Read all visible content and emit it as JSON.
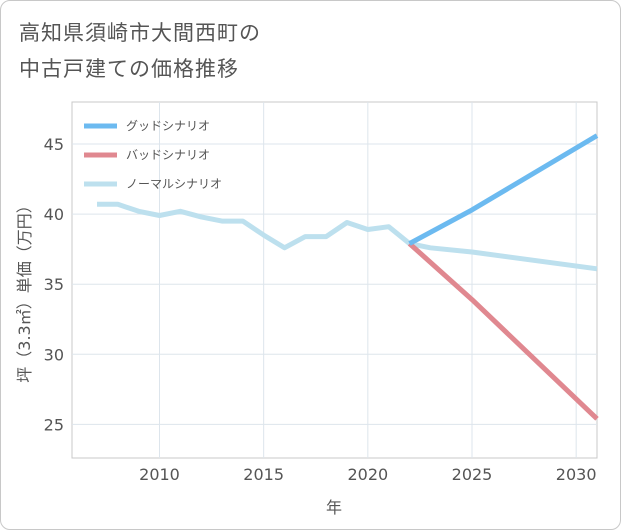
{
  "title_lines": [
    "高知県須崎市大間西町の",
    "中古戸建ての価格推移"
  ],
  "chart_data": {
    "type": "line",
    "title": "高知県須崎市大間西町の中古戸建ての価格推移",
    "xlabel": "年",
    "ylabel": "坪（3.3㎡）単価（万円）",
    "xlim": [
      2005.8,
      2031
    ],
    "ylim": [
      22.6,
      48.0
    ],
    "x_ticks": [
      2010,
      2015,
      2020,
      2025,
      2030
    ],
    "y_ticks": [
      25,
      30,
      35,
      40,
      45
    ],
    "grid": true,
    "legend_position": "top-left",
    "series": [
      {
        "name": "グッドシナリオ",
        "color": "#6cbaf0",
        "x": [
          2022,
          2025,
          2031
        ],
        "y": [
          37.9,
          40.3,
          45.6
        ]
      },
      {
        "name": "バッドシナリオ",
        "color": "#e08890",
        "x": [
          2022,
          2025,
          2031
        ],
        "y": [
          37.9,
          33.9,
          25.4
        ]
      },
      {
        "name": "ノーマルシナリオ",
        "color": "#bde0ee",
        "x": [
          2007,
          2008,
          2009,
          2010,
          2011,
          2012,
          2013,
          2014,
          2015,
          2016,
          2017,
          2018,
          2019,
          2020,
          2021,
          2022,
          2023,
          2025,
          2031
        ],
        "y": [
          40.7,
          40.7,
          40.2,
          39.9,
          40.2,
          39.8,
          39.5,
          39.5,
          38.5,
          37.6,
          38.4,
          38.4,
          39.4,
          38.9,
          39.1,
          37.9,
          37.6,
          37.3,
          36.1
        ]
      }
    ]
  }
}
